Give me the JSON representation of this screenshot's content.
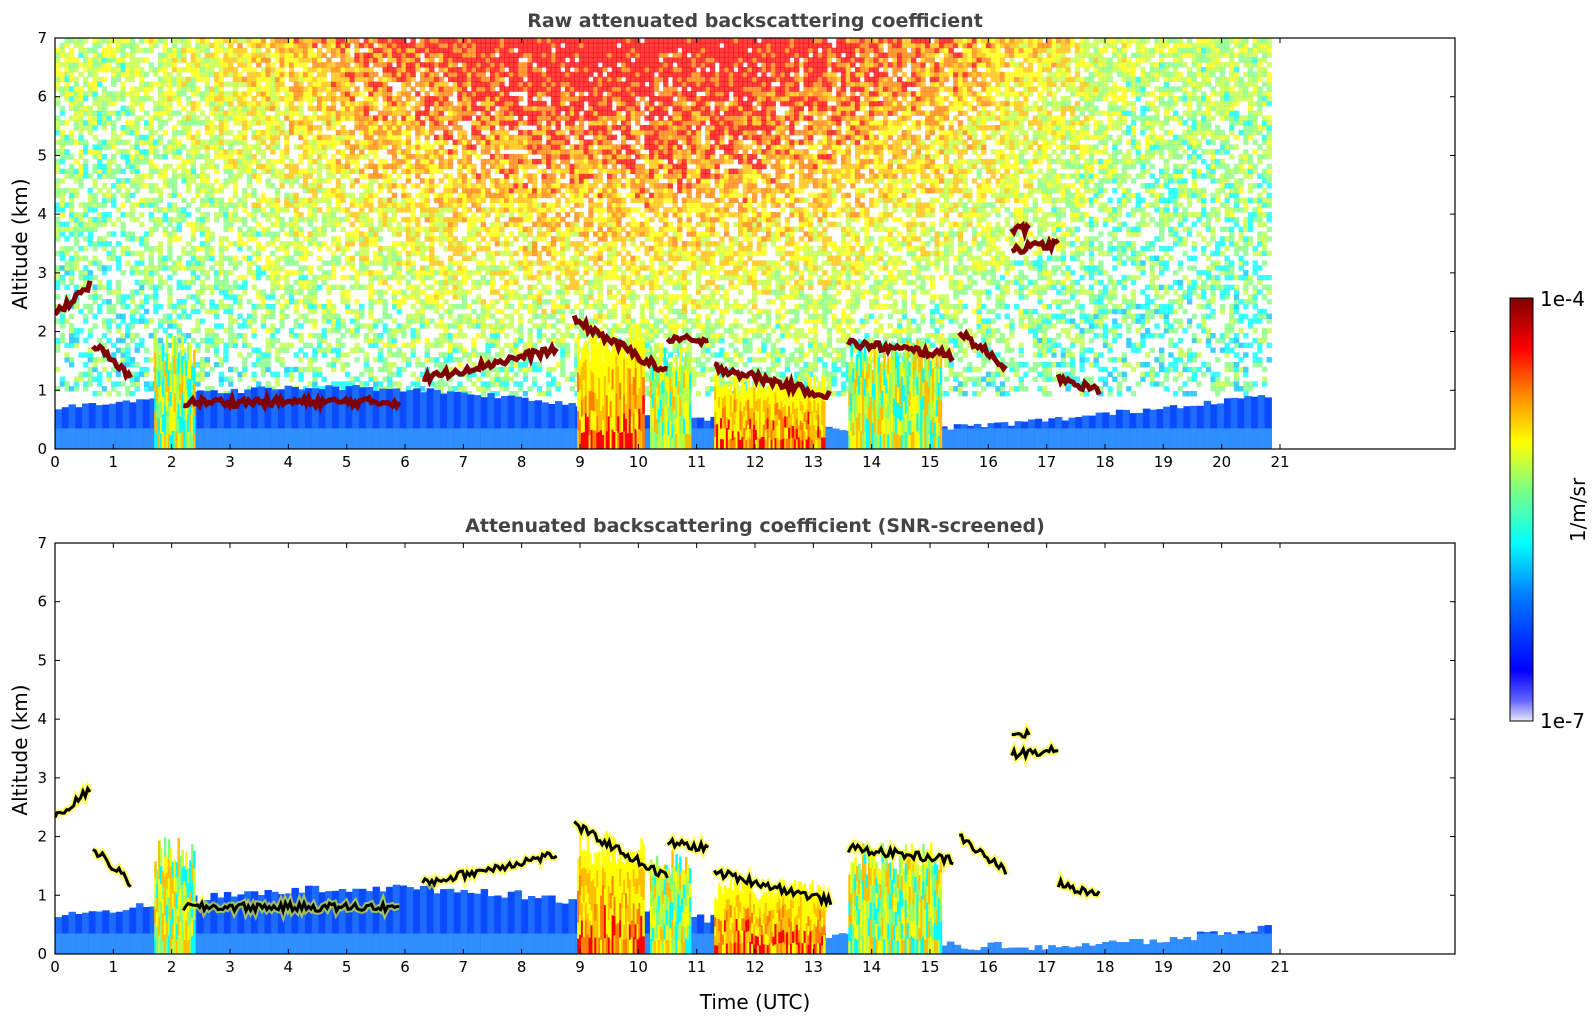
{
  "colors": {
    "colormap": [
      "#ffffff",
      "#00007f",
      "#0000ff",
      "#007fff",
      "#00ffff",
      "#7fff7f",
      "#ffff00",
      "#ff7f00",
      "#ff0000",
      "#7f0000"
    ],
    "cloud_base": "#7f0000",
    "screened_edge": "#000000"
  },
  "chart_data": [
    {
      "type": "heatmap",
      "title": "Raw attenuated backscattering coefficient",
      "xlabel": "",
      "ylabel": "Altitude (km)",
      "xlim": [
        0,
        24
      ],
      "ylim": [
        0,
        7
      ],
      "xticks": [
        "0",
        "1",
        "2",
        "3",
        "4",
        "5",
        "6",
        "7",
        "8",
        "9",
        "10",
        "11",
        "12",
        "13",
        "14",
        "15",
        "16",
        "17",
        "18",
        "19",
        "20",
        "21"
      ],
      "yticks": [
        "0",
        "1",
        "2",
        "3",
        "4",
        "5",
        "6",
        "7"
      ],
      "data_end_time": 20.85,
      "noise_top": true,
      "cloud_layers": [
        {
          "t": [
            0.0,
            0.6
          ],
          "z": [
            2.3,
            2.8
          ]
        },
        {
          "t": [
            0.65,
            1.3
          ],
          "z": [
            1.8,
            1.2
          ]
        },
        {
          "t": [
            2.2,
            5.9
          ],
          "z": [
            0.8,
            0.8
          ]
        },
        {
          "t": [
            6.3,
            8.6
          ],
          "z": [
            1.2,
            1.7
          ]
        },
        {
          "t": [
            8.9,
            10.5
          ],
          "z": [
            2.2,
            1.3
          ]
        },
        {
          "t": [
            10.5,
            11.2
          ],
          "z": [
            1.9,
            1.8
          ]
        },
        {
          "t": [
            11.3,
            13.3
          ],
          "z": [
            1.4,
            0.9
          ]
        },
        {
          "t": [
            13.6,
            15.4
          ],
          "z": [
            1.8,
            1.6
          ]
        },
        {
          "t": [
            15.5,
            16.3
          ],
          "z": [
            2.0,
            1.4
          ]
        },
        {
          "t": [
            16.4,
            17.2
          ],
          "z": [
            3.4,
            3.5
          ]
        },
        {
          "t": [
            16.4,
            16.7
          ],
          "z": [
            3.75,
            3.75
          ]
        },
        {
          "t": [
            17.2,
            17.9
          ],
          "z": [
            1.2,
            1.0
          ]
        }
      ],
      "precip_columns": [
        {
          "t": [
            1.7,
            2.4
          ],
          "top": 2.0
        },
        {
          "t": [
            8.95,
            10.1
          ],
          "top": 2.1
        },
        {
          "t": [
            10.2,
            10.9
          ],
          "top": 1.8
        },
        {
          "t": [
            11.3,
            13.2
          ],
          "top": 1.3
        },
        {
          "t": [
            13.6,
            15.2
          ],
          "top": 1.9
        }
      ]
    },
    {
      "type": "heatmap",
      "title": "Attenuated backscattering coefficient (SNR-screened)",
      "xlabel": "Time (UTC)",
      "ylabel": "Altitude (km)",
      "xlim": [
        0,
        24
      ],
      "ylim": [
        0,
        7
      ],
      "xticks": [
        "0",
        "1",
        "2",
        "3",
        "4",
        "5",
        "6",
        "7",
        "8",
        "9",
        "10",
        "11",
        "12",
        "13",
        "14",
        "15",
        "16",
        "17",
        "18",
        "19",
        "20",
        "21"
      ],
      "yticks": [
        "0",
        "1",
        "2",
        "3",
        "4",
        "5",
        "6",
        "7"
      ],
      "data_end_time": 20.85,
      "noise_top": false,
      "cloud_layers": [
        {
          "t": [
            0.0,
            0.6
          ],
          "z": [
            2.3,
            2.8
          ]
        },
        {
          "t": [
            0.65,
            1.3
          ],
          "z": [
            1.8,
            1.2
          ]
        },
        {
          "t": [
            2.2,
            5.9
          ],
          "z": [
            0.8,
            0.8
          ]
        },
        {
          "t": [
            6.3,
            8.6
          ],
          "z": [
            1.2,
            1.7
          ]
        },
        {
          "t": [
            8.9,
            10.5
          ],
          "z": [
            2.2,
            1.3
          ]
        },
        {
          "t": [
            10.5,
            11.2
          ],
          "z": [
            1.9,
            1.8
          ]
        },
        {
          "t": [
            11.3,
            13.3
          ],
          "z": [
            1.4,
            0.9
          ]
        },
        {
          "t": [
            13.6,
            15.4
          ],
          "z": [
            1.8,
            1.6
          ]
        },
        {
          "t": [
            15.5,
            16.3
          ],
          "z": [
            2.0,
            1.4
          ]
        },
        {
          "t": [
            16.4,
            17.2
          ],
          "z": [
            3.4,
            3.5
          ]
        },
        {
          "t": [
            16.4,
            16.7
          ],
          "z": [
            3.75,
            3.75
          ]
        },
        {
          "t": [
            17.2,
            17.9
          ],
          "z": [
            1.2,
            1.0
          ]
        }
      ],
      "precip_columns": [
        {
          "t": [
            1.7,
            2.4
          ],
          "top": 2.0
        },
        {
          "t": [
            8.95,
            10.1
          ],
          "top": 2.1
        },
        {
          "t": [
            10.2,
            10.9
          ],
          "top": 1.8
        },
        {
          "t": [
            11.3,
            13.2
          ],
          "top": 1.3
        },
        {
          "t": [
            13.6,
            15.2
          ],
          "top": 1.9
        }
      ]
    }
  ],
  "colorbar": {
    "label": "1/m/sr",
    "max_label": "1e-4",
    "min_label": "1e-7"
  }
}
